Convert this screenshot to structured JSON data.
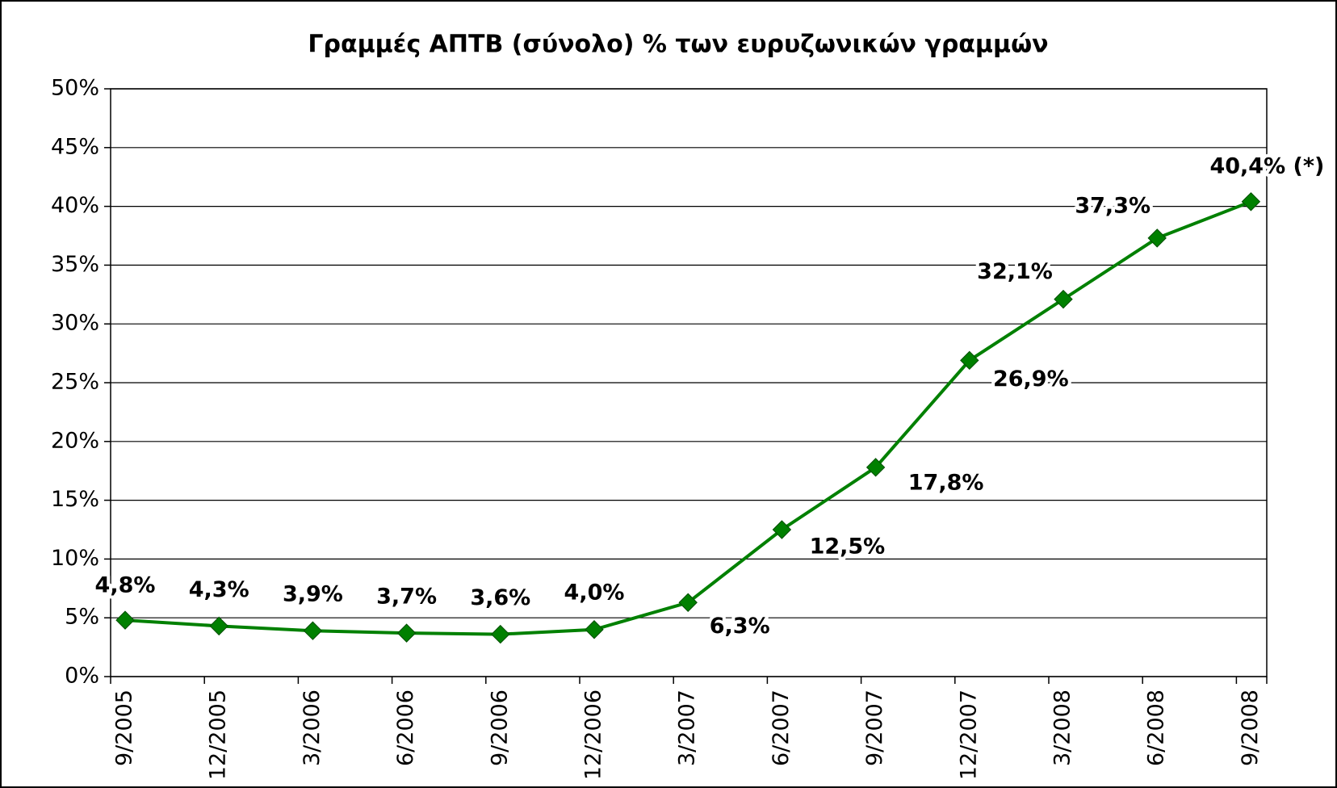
{
  "chart_data": {
    "type": "line",
    "title": "Γραμμές ΑΠΤΒ (σύνολο) % των ευρυζωνικών γραμμών",
    "categories": [
      "9/2005",
      "12/2005",
      "3/2006",
      "6/2006",
      "9/2006",
      "12/2006",
      "3/2007",
      "6/2007",
      "9/2007",
      "12/2007",
      "3/2008",
      "6/2008",
      "9/2008"
    ],
    "series": [
      {
        "name": "Γραμμές ΑΠΤΒ",
        "color": "#008000",
        "values": [
          4.8,
          4.3,
          3.9,
          3.7,
          3.6,
          4.0,
          6.3,
          12.5,
          17.8,
          26.9,
          32.1,
          37.3,
          40.4
        ],
        "value_labels": [
          "4,8%",
          "4,3%",
          "3,9%",
          "3,7%",
          "3,6%",
          "4,0%",
          "6,3%",
          "12,5%",
          "17,8%",
          "26,9%",
          "32,1%",
          "37,3%",
          "40,4% (*)"
        ]
      }
    ],
    "ylim": [
      0,
      50
    ],
    "yticks": [
      {
        "value": 0,
        "label": "0%"
      },
      {
        "value": 5,
        "label": "5%"
      },
      {
        "value": 10,
        "label": "10%"
      },
      {
        "value": 15,
        "label": "15%"
      },
      {
        "value": 20,
        "label": "20%"
      },
      {
        "value": 25,
        "label": "25%"
      },
      {
        "value": 30,
        "label": "30%"
      },
      {
        "value": 35,
        "label": "35%"
      },
      {
        "value": 40,
        "label": "40%"
      },
      {
        "value": 45,
        "label": "45%"
      },
      {
        "value": 50,
        "label": "50%"
      }
    ],
    "grid": true
  }
}
